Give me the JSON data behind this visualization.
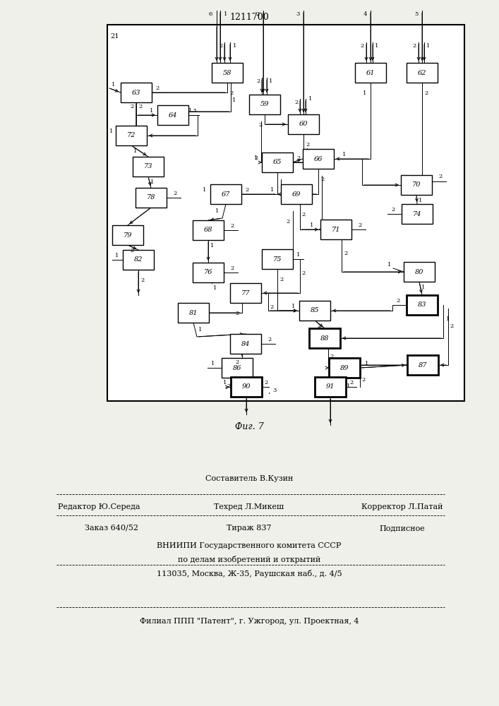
{
  "title": "1211700",
  "fig_label": "Фиг. 7",
  "border_label": "21",
  "bg_color": "#f0f0ea",
  "box_color": "#ffffff",
  "line_color": "#000000",
  "footer": {
    "sestavitel": "Составитель В.Кузин",
    "redaktor": "Редактор Ю.Середа",
    "tehred": "Техред Л.Микеш",
    "korrektor": "Корректор Л.Патай",
    "zakaz": "Заказ 640/52",
    "tirazh": "Тираж 837",
    "podpisnoe": "Подписное",
    "vniip1": "ВНИИПИ Государственного комитета СССР",
    "vniip2": "по делам изобретений и открытий",
    "addr": "113035, Москва, Ж-35, Раушская наб., д. 4/5",
    "filial": "Филиал ППП \"Патент\", г. Ужгород, ул. Проектная, 4"
  }
}
